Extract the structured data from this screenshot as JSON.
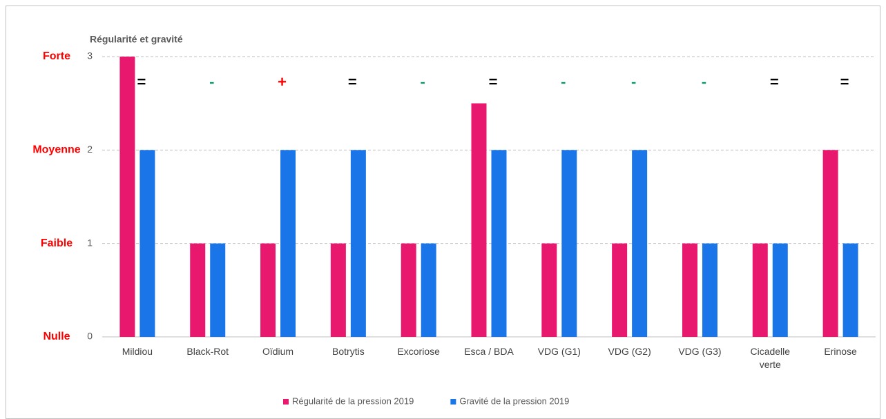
{
  "chart_data": {
    "type": "bar",
    "y_axis_title": "Régularité et gravité",
    "categories": [
      "Mildiou",
      "Black-Rot",
      "Oïdium",
      "Botrytis",
      "Excoriose",
      "Esca / BDA",
      "VDG (G1)",
      "VDG (G2)",
      "VDG (G3)",
      "Cicadelle verte",
      "Erinose"
    ],
    "series": [
      {
        "name": "Régularité de la pression 2019",
        "color": "#e8186e",
        "values": [
          3,
          1,
          1,
          1,
          1,
          2.5,
          1,
          1,
          1,
          1,
          2
        ]
      },
      {
        "name": "Gravité de la pression 2019",
        "color": "#1a76e8",
        "values": [
          2,
          1,
          2,
          2,
          1,
          2,
          2,
          2,
          1,
          1,
          1
        ]
      }
    ],
    "trend_annotations": [
      {
        "text": "=",
        "color": "#000000"
      },
      {
        "text": "-",
        "color": "#17a070"
      },
      {
        "text": "+",
        "color": "#ff0000"
      },
      {
        "text": "=",
        "color": "#000000"
      },
      {
        "text": "-",
        "color": "#17a070"
      },
      {
        "text": "=",
        "color": "#000000"
      },
      {
        "text": "-",
        "color": "#17a070"
      },
      {
        "text": "-",
        "color": "#17a070"
      },
      {
        "text": "-",
        "color": "#17a070"
      },
      {
        "text": "=",
        "color": "#000000"
      },
      {
        "text": "=",
        "color": "#000000"
      }
    ],
    "level_labels": [
      {
        "value": 3,
        "label": "Forte"
      },
      {
        "value": 2,
        "label": "Moyenne"
      },
      {
        "value": 1,
        "label": "Faible"
      },
      {
        "value": 0,
        "label": "Nulle"
      }
    ],
    "level_color": "#ff0000",
    "ylim": [
      0,
      3
    ],
    "yticks": [
      0,
      1,
      2,
      3
    ],
    "grid": true
  }
}
